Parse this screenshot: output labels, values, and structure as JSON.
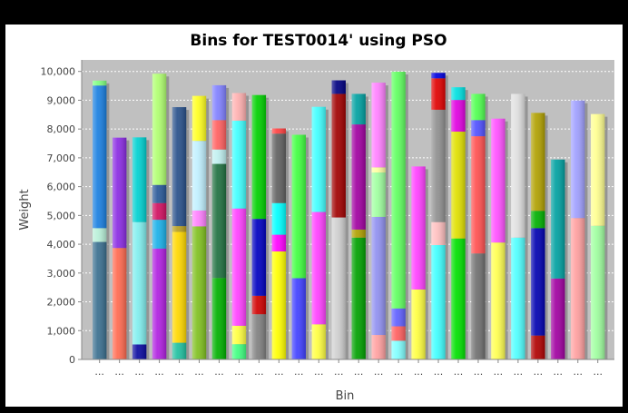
{
  "chart_data": {
    "type": "bar",
    "stacked": true,
    "title": "Bins for TEST0014' using PSO",
    "xlabel": "Bin",
    "ylabel": "Weight",
    "ylim": [
      0,
      10400
    ],
    "yticks": [
      0,
      1000,
      2000,
      3000,
      4000,
      5000,
      6000,
      7000,
      8000,
      9000,
      10000
    ],
    "ytick_labels": [
      "0",
      "1,000",
      "2,000",
      "3,000",
      "4,000",
      "5,000",
      "6,000",
      "7,000",
      "8,000",
      "9,000",
      "10,000"
    ],
    "category_label": "...",
    "grid": true,
    "legend": "none",
    "plot_background": "#c0c0c0",
    "bins": [
      {
        "segments": [
          {
            "value": 4080,
            "color": "#3a6f8f"
          },
          {
            "value": 480,
            "color": "#b8f0d8"
          },
          {
            "value": 4950,
            "color": "#1a7fe0"
          },
          {
            "value": 170,
            "color": "#80ff80"
          }
        ]
      },
      {
        "segments": [
          {
            "value": 3870,
            "color": "#ff6a50"
          },
          {
            "value": 3830,
            "color": "#8a2be2"
          }
        ]
      },
      {
        "segments": [
          {
            "value": 520,
            "color": "#0a0aa0"
          },
          {
            "value": 4250,
            "color": "#80eeee"
          },
          {
            "value": 2940,
            "color": "#00d0d0"
          }
        ]
      },
      {
        "segments": [
          {
            "value": 3850,
            "color": "#b020e0"
          },
          {
            "value": 1000,
            "color": "#1ab0e8"
          },
          {
            "value": 580,
            "color": "#d01060"
          },
          {
            "value": 630,
            "color": "#285898"
          },
          {
            "value": 3860,
            "color": "#b0ff70"
          }
        ]
      },
      {
        "segments": [
          {
            "value": 580,
            "color": "#20c0a0"
          },
          {
            "value": 3850,
            "color": "#ffd800"
          },
          {
            "value": 200,
            "color": "#b8a020"
          },
          {
            "value": 4130,
            "color": "#28508a"
          }
        ]
      },
      {
        "segments": [
          {
            "value": 4620,
            "color": "#80c020"
          },
          {
            "value": 550,
            "color": "#ff80ff"
          },
          {
            "value": 2420,
            "color": "#c0f0ff"
          },
          {
            "value": 1560,
            "color": "#ffff20"
          }
        ]
      },
      {
        "segments": [
          {
            "value": 2830,
            "color": "#00b000"
          },
          {
            "value": 3960,
            "color": "#207040"
          },
          {
            "value": 500,
            "color": "#c0f0f0"
          },
          {
            "value": 1020,
            "color": "#ff6060"
          },
          {
            "value": 1210,
            "color": "#8080ff"
          }
        ]
      },
      {
        "segments": [
          {
            "value": 530,
            "color": "#40ff80"
          },
          {
            "value": 640,
            "color": "#ffff40"
          },
          {
            "value": 4070,
            "color": "#ff40ff"
          },
          {
            "value": 3050,
            "color": "#40ffff"
          },
          {
            "value": 960,
            "color": "#ffb0b0"
          }
        ]
      },
      {
        "segments": [
          {
            "value": 1570,
            "color": "#808080"
          },
          {
            "value": 640,
            "color": "#d00000"
          },
          {
            "value": 2670,
            "color": "#0000c0"
          },
          {
            "value": 4300,
            "color": "#00d000"
          }
        ]
      },
      {
        "segments": [
          {
            "value": 3750,
            "color": "#ffff00"
          },
          {
            "value": 580,
            "color": "#ff00ff"
          },
          {
            "value": 1100,
            "color": "#00ffff"
          },
          {
            "value": 2410,
            "color": "#606060"
          },
          {
            "value": 180,
            "color": "#ff4040"
          }
        ]
      },
      {
        "segments": [
          {
            "value": 2820,
            "color": "#4040ff"
          },
          {
            "value": 4980,
            "color": "#40ff40"
          }
        ]
      },
      {
        "segments": [
          {
            "value": 1220,
            "color": "#ffff40"
          },
          {
            "value": 3900,
            "color": "#ff40ff"
          },
          {
            "value": 3650,
            "color": "#40ffff"
          }
        ]
      },
      {
        "segments": [
          {
            "value": 4930,
            "color": "#d0d0d0"
          },
          {
            "value": 4290,
            "color": "#a00000"
          },
          {
            "value": 470,
            "color": "#000080"
          }
        ]
      },
      {
        "segments": [
          {
            "value": 4230,
            "color": "#00a000"
          },
          {
            "value": 280,
            "color": "#b0a000"
          },
          {
            "value": 3650,
            "color": "#a000a0"
          },
          {
            "value": 1060,
            "color": "#00a0a0"
          }
        ]
      },
      {
        "segments": [
          {
            "value": 850,
            "color": "#ffa0a0"
          },
          {
            "value": 4100,
            "color": "#9090f0"
          },
          {
            "value": 1540,
            "color": "#a0ffa0"
          },
          {
            "value": 180,
            "color": "#ffffa0"
          },
          {
            "value": 2940,
            "color": "#ff80ff"
          }
        ]
      },
      {
        "segments": [
          {
            "value": 650,
            "color": "#80ffff"
          },
          {
            "value": 500,
            "color": "#ff6060"
          },
          {
            "value": 620,
            "color": "#6060ff"
          },
          {
            "value": 8220,
            "color": "#60ff60"
          }
        ]
      },
      {
        "segments": [
          {
            "value": 2430,
            "color": "#ffff40"
          },
          {
            "value": 4270,
            "color": "#ff40ff"
          }
        ]
      },
      {
        "segments": [
          {
            "value": 3970,
            "color": "#40ffff"
          },
          {
            "value": 800,
            "color": "#ffc0c0"
          },
          {
            "value": 3900,
            "color": "#909090"
          },
          {
            "value": 1090,
            "color": "#e00000"
          },
          {
            "value": 190,
            "color": "#0000e0"
          }
        ]
      },
      {
        "segments": [
          {
            "value": 4200,
            "color": "#00e000"
          },
          {
            "value": 3710,
            "color": "#e0e000"
          },
          {
            "value": 1100,
            "color": "#e000e0"
          },
          {
            "value": 440,
            "color": "#00e0e0"
          }
        ]
      },
      {
        "segments": [
          {
            "value": 3680,
            "color": "#707070"
          },
          {
            "value": 4070,
            "color": "#ff5050"
          },
          {
            "value": 560,
            "color": "#5050ff"
          },
          {
            "value": 910,
            "color": "#50ff50"
          }
        ]
      },
      {
        "segments": [
          {
            "value": 4060,
            "color": "#ffff50"
          },
          {
            "value": 4300,
            "color": "#ff50ff"
          }
        ]
      },
      {
        "segments": [
          {
            "value": 4230,
            "color": "#50ffff"
          },
          {
            "value": 4990,
            "color": "#e0e0e0"
          }
        ]
      },
      {
        "segments": [
          {
            "value": 830,
            "color": "#b00000"
          },
          {
            "value": 3730,
            "color": "#0000b0"
          },
          {
            "value": 600,
            "color": "#00b000"
          },
          {
            "value": 3400,
            "color": "#b0a000"
          }
        ]
      },
      {
        "segments": [
          {
            "value": 2810,
            "color": "#a000a0"
          },
          {
            "value": 4130,
            "color": "#00a0a0"
          }
        ]
      },
      {
        "segments": [
          {
            "value": 4910,
            "color": "#ffa0a0"
          },
          {
            "value": 4080,
            "color": "#a0a0ff"
          }
        ]
      },
      {
        "segments": [
          {
            "value": 4640,
            "color": "#a0ffa0"
          },
          {
            "value": 3880,
            "color": "#ffff90"
          }
        ]
      }
    ]
  }
}
